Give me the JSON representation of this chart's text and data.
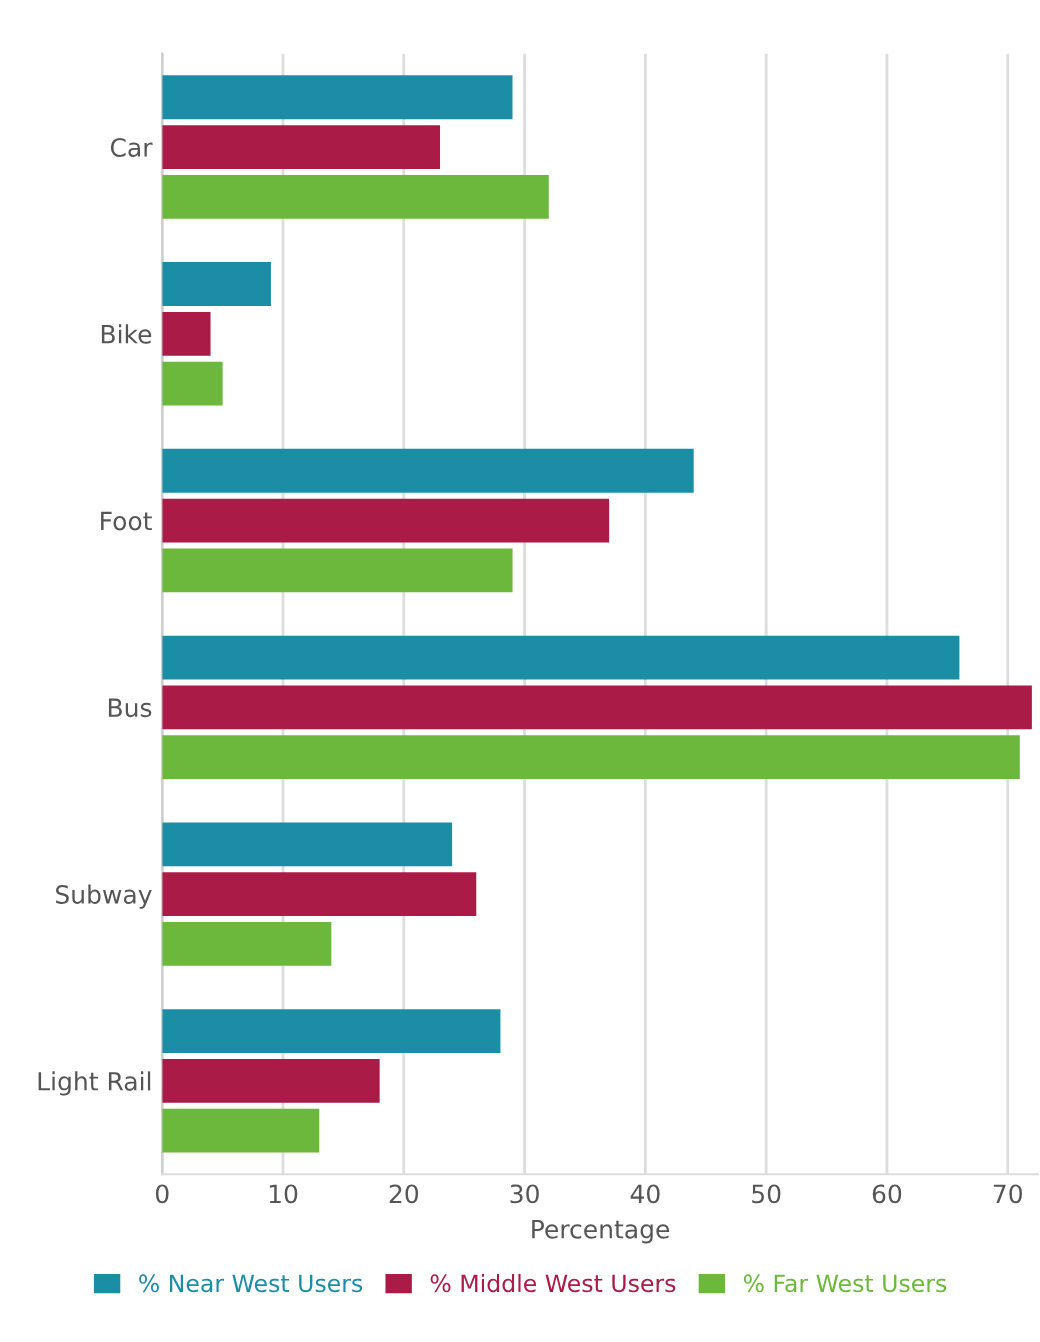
{
  "chart_data": {
    "type": "bar",
    "orientation": "horizontal",
    "xlabel": "Percentage",
    "categories": [
      "Car",
      "Bike",
      "Foot",
      "Bus",
      "Subway",
      "Light Rail"
    ],
    "series": [
      {
        "name": "% Near West Users",
        "color": "#1b8ea5",
        "values": [
          29,
          9,
          44,
          66,
          24,
          28
        ]
      },
      {
        "name": "% Middle West Users",
        "color": "#ab1b47",
        "values": [
          23,
          4,
          37,
          72,
          26,
          18
        ]
      },
      {
        "name": "% Far West Users",
        "color": "#6cb83c",
        "values": [
          32,
          5,
          29,
          71,
          14,
          13
        ]
      }
    ],
    "xlim": [
      0,
      72.5
    ],
    "xticks": [
      0,
      10,
      20,
      30,
      40,
      50,
      60,
      70
    ],
    "grid": "x",
    "legend": "bottom"
  }
}
